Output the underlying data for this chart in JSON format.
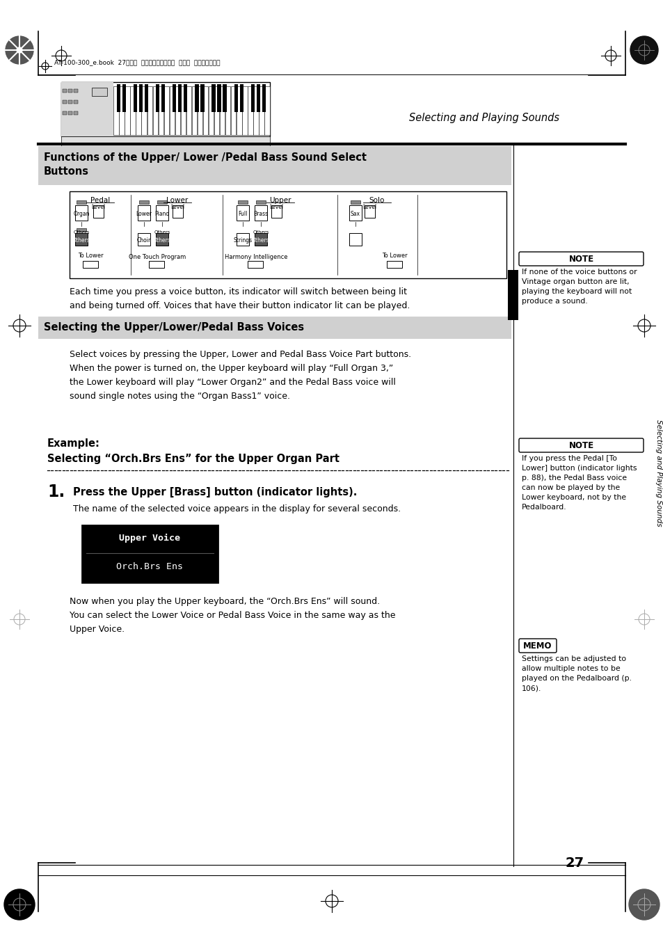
{
  "page_bg": "#ffffff",
  "page_width": 9.54,
  "page_height": 13.51,
  "dpi": 100,
  "header_text": "AT-100-300_e.book  27ページ  ２００８年５月７日  水曜日  午後３時３３分",
  "header_right": "Selecting and Playing Sounds",
  "section1_title": "Functions of the Upper/ Lower /Pedal Bass Sound Select\nButtons",
  "body_text1": "Each time you press a voice button, its indicator will switch between being lit\nand being turned off. Voices that have their button indicator lit can be played.",
  "section2_title": "Selecting the Upper/Lower/Pedal Bass Voices",
  "body_text2": "Select voices by pressing the Upper, Lower and Pedal Bass Voice Part buttons.\nWhen the power is turned on, the Upper keyboard will play “Full Organ 3,”\nthe Lower keyboard will play “Lower Organ2” and the Pedal Bass voice will\nsound single notes using the “Organ Bass1” voice.",
  "example_title": "Example:\nSelecting “Orch.Brs Ens” for the Upper Organ Part",
  "step1_num": "1.",
  "step1_text": "Press the Upper [Brass] button (indicator lights).",
  "step1_sub": "The name of the selected voice appears in the display for several seconds.",
  "display_line1": "Upper Voice",
  "display_line2": "Orch.Brs Ens",
  "body_text3": "Now when you play the Upper keyboard, the “Orch.Brs Ens” will sound.\nYou can select the Lower Voice or Pedal Bass Voice in the same way as the\nUpper Voice.",
  "note1_title": "NOTE",
  "note1_text": "If none of the voice buttons or\nVintage organ button are lit,\nplaying the keyboard will not\nproduce a sound.",
  "note2_title": "NOTE",
  "note2_text": "If you press the Pedal [To\nLower] button (indicator lights\np. 88), the Pedal Bass voice\ncan now be played by the\nLower keyboard, not by the\nPedalboard.",
  "memo_title": "MEMO",
  "memo_text": "Settings can be adjusted to\nallow multiple notes to be\nplayed on the Pedalboard (p.\n106).",
  "page_num": "27",
  "side_label": "Selecting and Playing Sounds"
}
